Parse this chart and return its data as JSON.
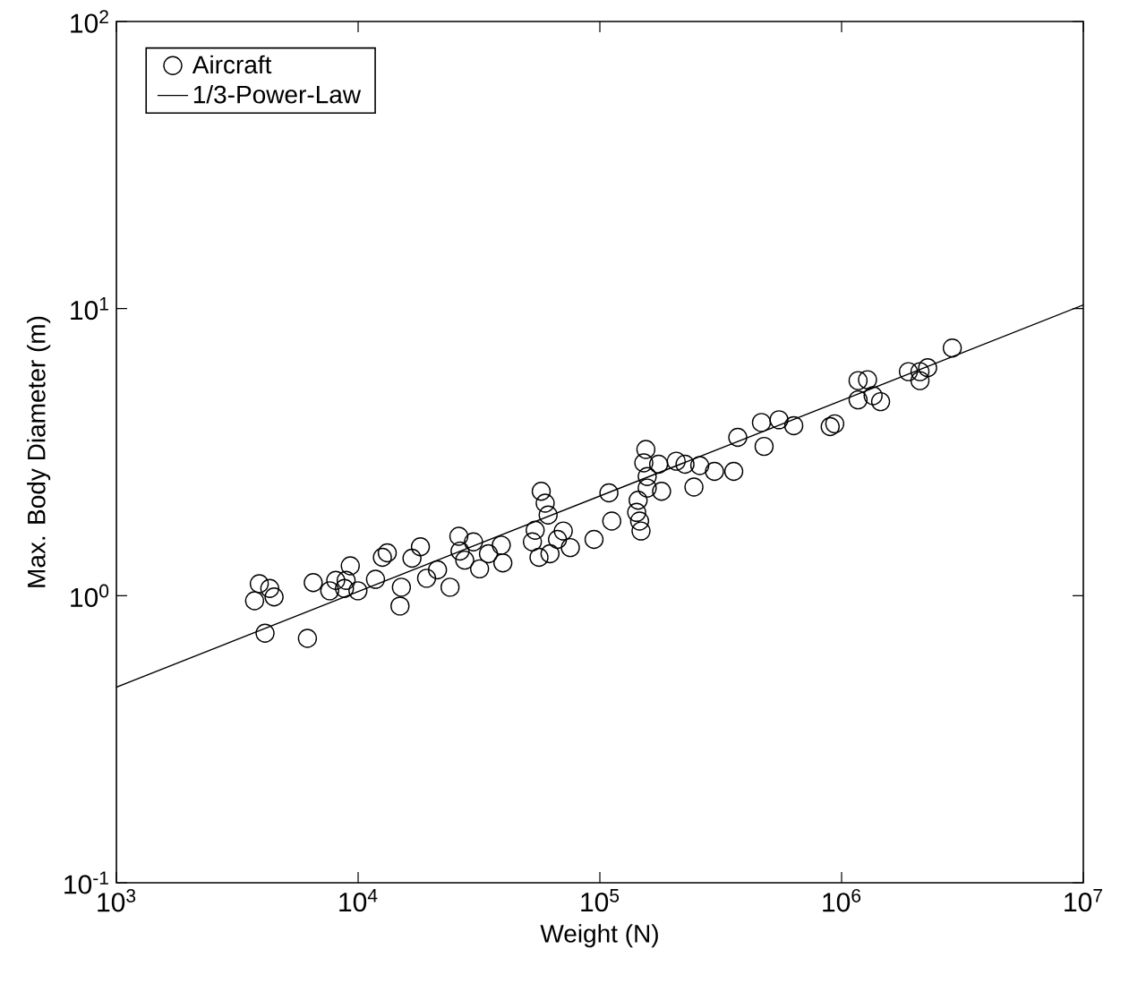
{
  "chart_data": {
    "type": "scatter",
    "xlabel": "Weight (N)",
    "ylabel": "Max. Body Diameter (m)",
    "log": "xy",
    "grid": false,
    "legend": "top left",
    "xlim": [
      1000,
      10000000
    ],
    "ylim": [
      0.1,
      100
    ],
    "xticks": [
      {
        "value": 1000,
        "label": "10$^{3}$"
      },
      {
        "value": 10000,
        "label": "10$^{4}$"
      },
      {
        "value": 100000,
        "label": "10$^{5}$"
      },
      {
        "value": 1000000,
        "label": "10$^{6}$"
      },
      {
        "value": 10000000,
        "label": "10$^{7}$"
      }
    ],
    "yticks": [
      {
        "value": 0.1,
        "label": "10$^{-1}$"
      },
      {
        "value": 1,
        "label": "10$^{0}$"
      },
      {
        "value": 10,
        "label": "10$^{1}$"
      },
      {
        "value": 100,
        "label": "10$^{2}$"
      }
    ],
    "series": [
      {
        "name": "Aircraft",
        "marker": "circle",
        "color": "#000000",
        "x": [
          3900,
          3730,
          4490,
          4310,
          4120,
          6170,
          6520,
          7630,
          8080,
          8780,
          9280,
          8920,
          9980,
          11800,
          12600,
          13200,
          15100,
          14900,
          16700,
          18100,
          19200,
          21300,
          24000,
          26100,
          26400,
          27600,
          30000,
          31800,
          34600,
          39100,
          39700,
          52600,
          54000,
          57200,
          59400,
          61100,
          62200,
          56000,
          66800,
          70600,
          75500,
          94600,
          112000,
          109000,
          144000,
          142000,
          146000,
          148000,
          155000,
          152000,
          157000,
          157000,
          180000,
          175000,
          207000,
          225000,
          245000,
          259000,
          298000,
          358000,
          372000,
          466000,
          478000,
          551000,
          634000,
          897000,
          937000,
          1170000,
          1280000,
          1170000,
          1350000,
          1450000,
          1890000,
          2110000,
          2270000,
          2110000,
          2870000
        ],
        "values": [
          1.1,
          0.96,
          0.99,
          1.06,
          0.74,
          0.71,
          1.11,
          1.04,
          1.13,
          1.06,
          1.27,
          1.13,
          1.04,
          1.14,
          1.36,
          1.41,
          1.07,
          0.92,
          1.35,
          1.48,
          1.15,
          1.23,
          1.07,
          1.61,
          1.43,
          1.33,
          1.54,
          1.24,
          1.4,
          1.5,
          1.3,
          1.54,
          1.69,
          2.31,
          2.1,
          1.91,
          1.4,
          1.36,
          1.57,
          1.68,
          1.47,
          1.57,
          1.82,
          2.28,
          2.15,
          1.95,
          1.82,
          1.68,
          3.23,
          2.9,
          2.6,
          2.37,
          2.31,
          2.87,
          2.94,
          2.87,
          2.39,
          2.84,
          2.71,
          2.71,
          3.56,
          4.01,
          3.31,
          4.1,
          3.91,
          3.88,
          3.97,
          5.61,
          5.65,
          4.81,
          4.97,
          4.74,
          6.03,
          6.03,
          6.22,
          5.61,
          7.29
        ]
      },
      {
        "name": "1/3-Power-Law",
        "type": "line",
        "line_style": "solid",
        "marker": "none",
        "color": "#000000",
        "x": [
          1000,
          10000000
        ],
        "values": [
          0.48,
          10.3
        ]
      }
    ]
  }
}
